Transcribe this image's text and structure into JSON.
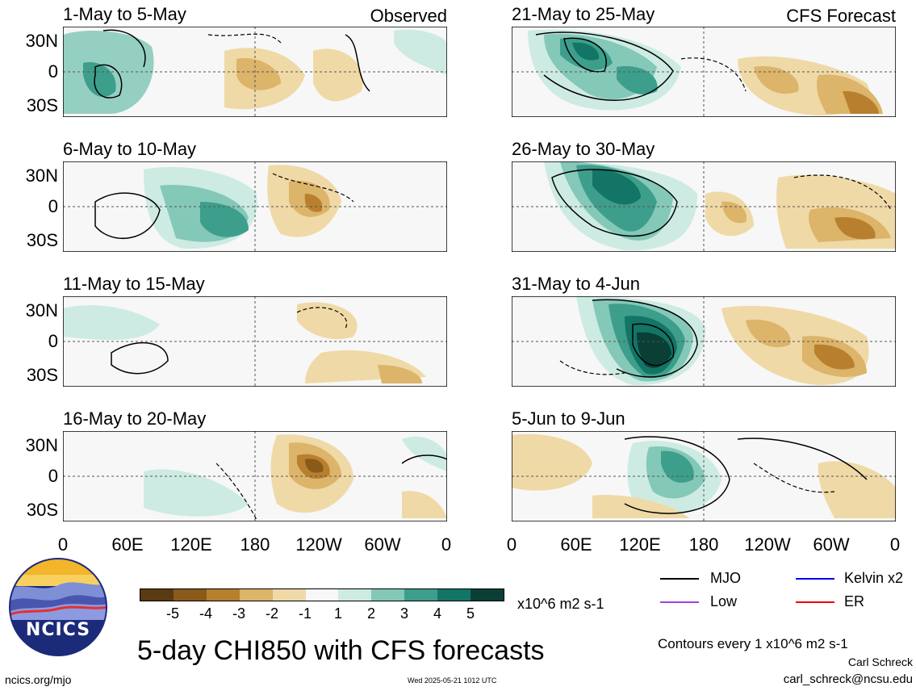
{
  "panels": {
    "observed_tag": "Observed",
    "forecast_tag": "CFS Forecast",
    "titles": [
      "1-May to 5-May",
      "6-May to 10-May",
      "11-May to 15-May",
      "16-May to 20-May",
      "21-May to 25-May",
      "26-May to 30-May",
      "31-May to 4-Jun",
      "5-Jun to 9-Jun"
    ],
    "lat_labels": [
      "30N",
      "0",
      "30S"
    ],
    "lon_labels": [
      "0",
      "60E",
      "120E",
      "180",
      "120W",
      "60W",
      "0"
    ]
  },
  "colorbar": {
    "labels": [
      "-5",
      "-4",
      "-3",
      "-2",
      "-1",
      "1",
      "2",
      "3",
      "4",
      "5"
    ],
    "units": "x10^6 m2 s-1",
    "colors": [
      "#5a3a10",
      "#8a5a1a",
      "#b8802e",
      "#dcb46a",
      "#efd9a6",
      "#f7f7f7",
      "#cdebe3",
      "#84c8b8",
      "#3e9e8c",
      "#127566",
      "#0a3f36"
    ]
  },
  "legend": {
    "items": [
      {
        "label": "MJO",
        "color": "#000000"
      },
      {
        "label": "Kelvin x2",
        "color": "#0000ee"
      },
      {
        "label": "Low",
        "color": "#a040e0"
      },
      {
        "label": "ER",
        "color": "#ee0000"
      }
    ],
    "contour_note": "Contours every 1 x10^6 m2 s-1"
  },
  "footer": {
    "logo_text": "NCICS",
    "main_title": "5-day CHI850 with CFS forecasts",
    "url": "ncics.org/mjo",
    "timestamp": "Wed 2025-05-21 1012 UTC",
    "author": "Carl Schreck",
    "email": "carl_schreck@ncsu.edu"
  }
}
